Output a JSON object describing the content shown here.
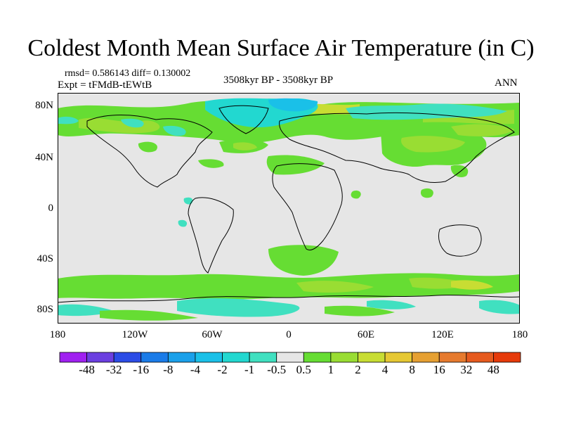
{
  "title": "Coldest Month Mean Surface Air Temperature (in C)",
  "stats_line": "rmsd= 0.586143 diff= 0.130002",
  "experiment": "Expt = tFMdB-tEWtB",
  "period": "3508kyr BP - 3508kyr BP",
  "season": "ANN",
  "lat_ticks": [
    "80N",
    "40N",
    "0",
    "40S",
    "80S"
  ],
  "lon_ticks": [
    "180",
    "120W",
    "60W",
    "0",
    "60E",
    "120E",
    "180"
  ],
  "colorbar": {
    "labels": [
      "-48",
      "-32",
      "-16",
      "-8",
      "-4",
      "-2",
      "-1",
      "-0.5",
      "0.5",
      "1",
      "2",
      "4",
      "8",
      "16",
      "32",
      "48"
    ],
    "colors": [
      "#a020f0",
      "#6b3fe0",
      "#2b4ce6",
      "#1a7be8",
      "#1aa0ea",
      "#1ac0e8",
      "#22d8d0",
      "#40e0c0",
      "#e6e6e6",
      "#66dd33",
      "#99dd33",
      "#c8dd33",
      "#e6c833",
      "#e6a032",
      "#e67a2e",
      "#e65a1e",
      "#e63a0a"
    ]
  },
  "map_colors": {
    "neutral": "#e6e6e6",
    "coast": "#000000"
  }
}
